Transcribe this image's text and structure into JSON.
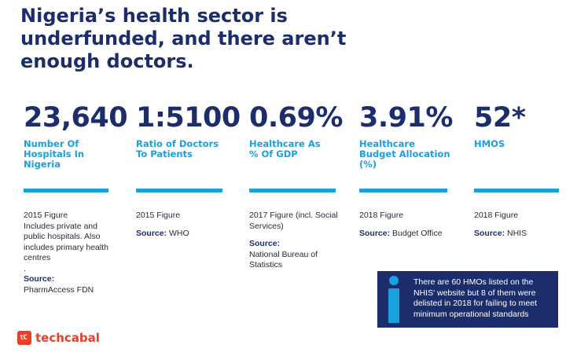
{
  "title_lines": [
    "Nigeria’s health sector is",
    "underfunded, and there aren’t",
    "enough doctors."
  ],
  "stats": [
    {
      "value": "23,640",
      "label_lines": [
        "Number Of",
        "Hospitals In",
        "Nigeria"
      ],
      "note_lines": [
        "2015 Figure",
        "Includes private and",
        "public hospitals. Also",
        "includes primary health",
        "centres",
        "."
      ],
      "source_label": "Source:",
      "source_lines": [
        "PharmAccess FDN"
      ]
    },
    {
      "value": "1:5100",
      "label_lines": [
        "Ratio of Doctors",
        "To Patients"
      ],
      "note_lines": [
        "2015 Figure"
      ],
      "source_label": "Source:",
      "source_inline": "WHO"
    },
    {
      "value": "0.69%",
      "label_lines": [
        "Healthcare As",
        "% Of GDP"
      ],
      "note_lines": [
        "2017 Figure (incl. Social",
        "Services)"
      ],
      "source_label": "Source:",
      "source_lines": [
        "National Bureau of",
        "Statistics"
      ]
    },
    {
      "value": "3.91%",
      "label_lines": [
        "Healthcare",
        "Budget Allocation",
        "(%)"
      ],
      "note_lines": [
        "2018 Figure"
      ],
      "source_label": "Source:",
      "source_inline": "Budget Office"
    },
    {
      "value": "52*",
      "label_lines": [
        "HMOS"
      ],
      "note_lines": [
        "2018 Figure"
      ],
      "source_label": "Source:",
      "source_inline": "NHIS"
    }
  ],
  "info_box": {
    "icon": "info-icon",
    "lines": [
      "There are 60 HMOs listed on the",
      "NHIS' website  but 8 of them were",
      "delisted in 2018 for failing to meet",
      "minimum operational standards"
    ]
  },
  "brand": {
    "name": "techcabal",
    "icon_glyph": "tC",
    "color": "#e8402a"
  },
  "colors": {
    "navy": "#1c2d6b",
    "accent_blue": "#1aa0dc"
  }
}
